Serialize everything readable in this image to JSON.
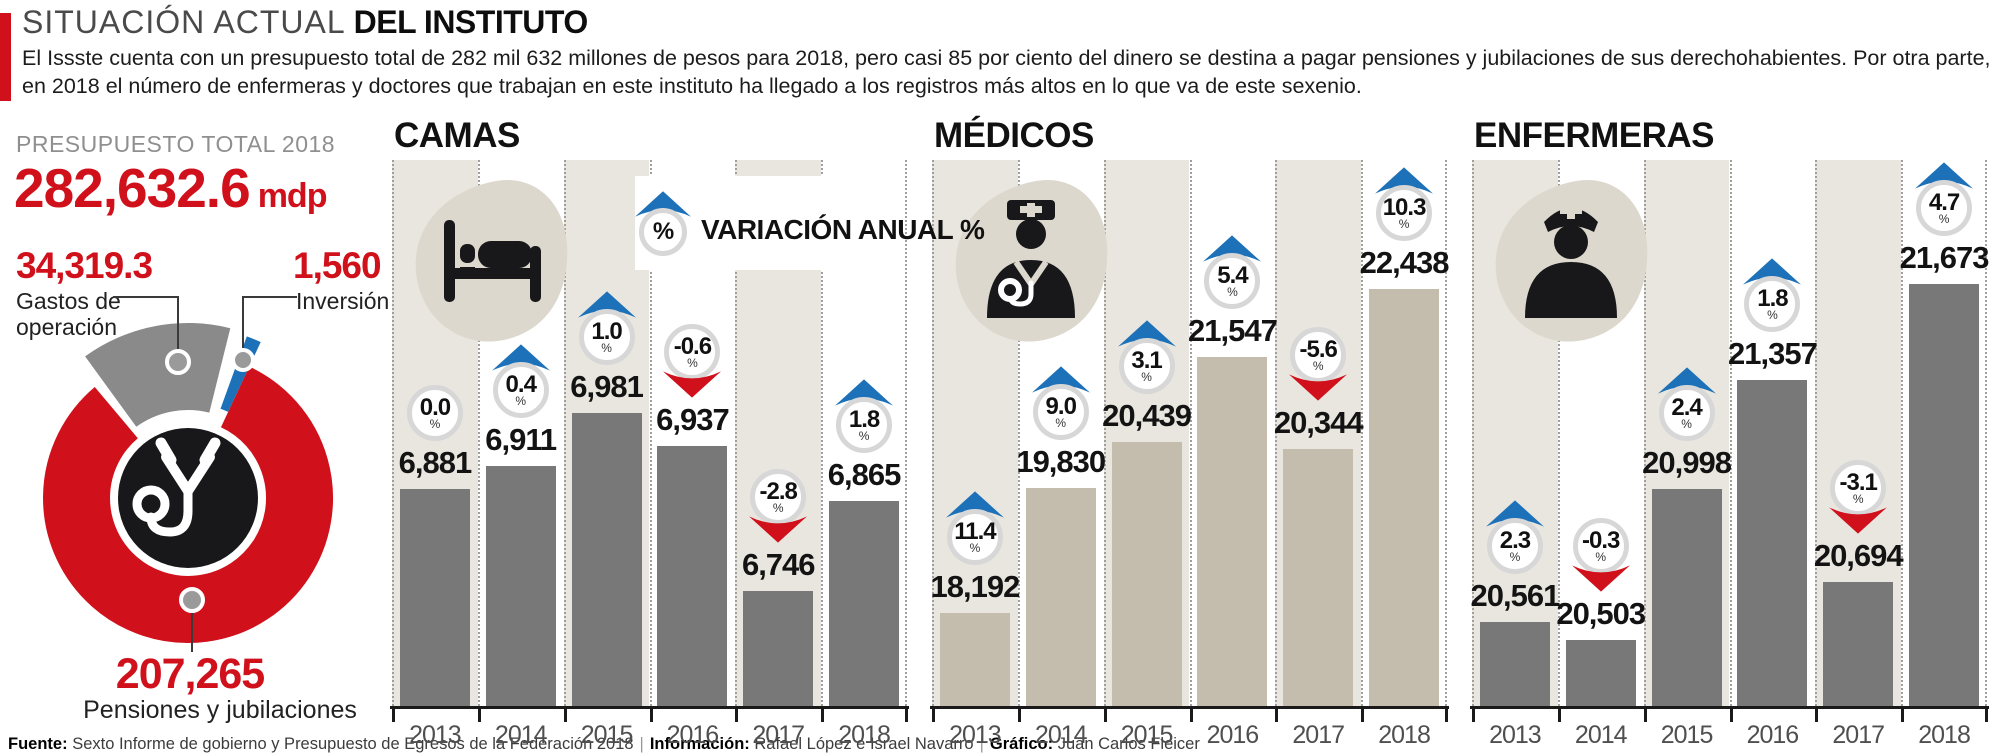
{
  "header": {
    "title_light": "SITUACIÓN ACTUAL",
    "title_bold": "DEL INSTITUTO",
    "intro_line1": "El Issste cuenta con un presupuesto total de 282 mil 632 millones de pesos para 2018, pero casi 85 por ciento del dinero se destina a pagar pensiones y jubilaciones de sus derechohabientes. Por otra parte,",
    "intro_line2": "en 2018 el número de enfermeras y doctores que trabajan en este instituto ha llegado a los registros más altos en lo que va de este sexenio."
  },
  "budget": {
    "label": "PRESUPUESTO TOTAL 2018",
    "total_value": "282,632.6",
    "total_unit": "mdp",
    "operating_value": "34,319.3",
    "operating_label_line1": "Gastos de",
    "operating_label_line2": "operación",
    "investment_value": "1,560",
    "investment_label": "Inversión",
    "pensions_value": "207,265",
    "pensions_label": "Pensiones y jubilaciones"
  },
  "legend": {
    "symbol": "%",
    "label": "VARIACIÓN ANUAL %"
  },
  "percent_sign": "%",
  "colors": {
    "red": "#d0111b",
    "blue": "#1d71b8",
    "bar_gray": "#787878",
    "bar_tan": "#c4bdae",
    "column_beige": "#e9e6df",
    "blob_beige": "#ddd8cd"
  },
  "icons": {
    "camas": "bed-icon",
    "medicos": "doctor-icon",
    "enfermeras": "nurse-icon",
    "donut_center": "stethoscope-icon",
    "positive": "arrow-up-icon",
    "negative": "arrow-down-icon"
  },
  "chart_data": [
    {
      "type": "donut",
      "title": "PRESUPUESTO TOTAL 2018",
      "total": 282632.6,
      "unit": "mdp",
      "slices": [
        {
          "label": "Pensiones y jubilaciones",
          "value": 207265,
          "color": "#d0111b"
        },
        {
          "label": "Gastos de operación",
          "value": 34319.3,
          "color": "#8a8a8a"
        },
        {
          "label": "Inversión",
          "value": 1560,
          "color": "#1d71b8"
        }
      ]
    },
    {
      "type": "bar",
      "title": "CAMAS",
      "categories": [
        "2013",
        "2014",
        "2015",
        "2016",
        "2017",
        "2018"
      ],
      "values": [
        6881,
        6911,
        6981,
        6937,
        6746,
        6865
      ],
      "value_labels": [
        "6,881",
        "6,911",
        "6,981",
        "6,937",
        "6,746",
        "6,865"
      ],
      "variation_labels": [
        "0.0",
        "0.4",
        "1.0",
        "-0.6",
        "-2.8",
        "1.8"
      ],
      "variation_dirs": [
        "none",
        "up",
        "up",
        "down",
        "down",
        "up"
      ],
      "bar_color": "#787878",
      "ylabel": "camas",
      "grid": false,
      "legend_position": "top-right"
    },
    {
      "type": "bar",
      "title": "MÉDICOS",
      "categories": [
        "2013",
        "2014",
        "2015",
        "2016",
        "2017",
        "2018"
      ],
      "values": [
        18192,
        19830,
        20439,
        21547,
        20344,
        22438
      ],
      "value_labels": [
        "18,192",
        "19,830",
        "20,439",
        "21,547",
        "20,344",
        "22,438"
      ],
      "variation_labels": [
        "11.4",
        "9.0",
        "3.1",
        "5.4",
        "-5.6",
        "10.3"
      ],
      "variation_dirs": [
        "up",
        "up",
        "up",
        "up",
        "down",
        "up"
      ],
      "bar_color": "#c4bdae",
      "ylabel": "médicos",
      "grid": false
    },
    {
      "type": "bar",
      "title": "ENFERMERAS",
      "categories": [
        "2013",
        "2014",
        "2015",
        "2016",
        "2017",
        "2018"
      ],
      "values": [
        20561,
        20503,
        20998,
        21357,
        20694,
        21673
      ],
      "value_labels": [
        "20,561",
        "20,503",
        "20,998",
        "21,357",
        "20,694",
        "21,673"
      ],
      "variation_labels": [
        "2.3",
        "-0.3",
        "2.4",
        "1.8",
        "-3.1",
        "4.7"
      ],
      "variation_dirs": [
        "up",
        "down",
        "up",
        "up",
        "down",
        "up"
      ],
      "bar_color": "#787878",
      "ylabel": "enfermeras",
      "grid": false
    }
  ],
  "footer": {
    "fuente_label": "Fuente:",
    "fuente": "Sexto Informe de gobierno y Presupuesto de Egresos de la Federación 2018",
    "info_label": "Información:",
    "info": "Rafael López e Israel Navarro",
    "grafico_label": "Gráfico:",
    "grafico": "Juan Carlos Fleicer"
  }
}
